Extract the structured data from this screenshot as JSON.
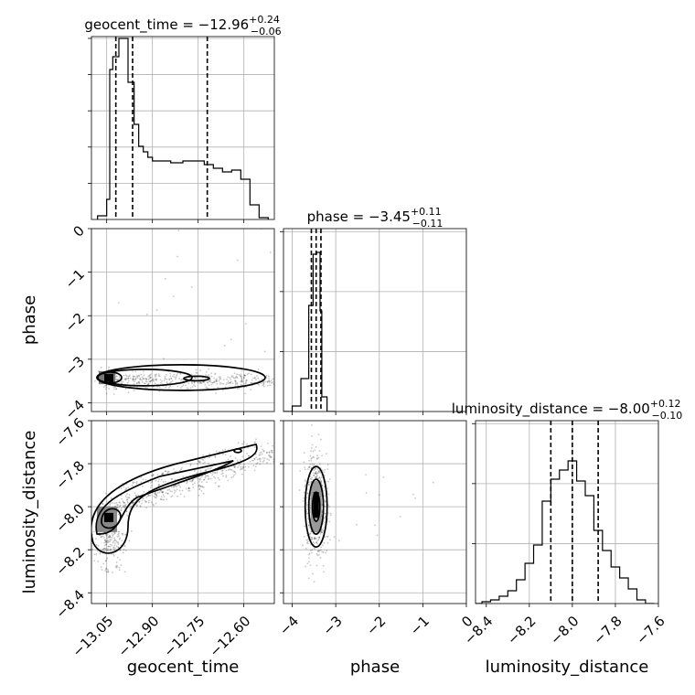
{
  "chart_data": {
    "type": "corner",
    "parameters": [
      "geocent_time",
      "phase",
      "luminosity_distance"
    ],
    "panel_titles": {
      "geocent_time": {
        "label": "geocent_time = −12.96",
        "plus": "+0.24",
        "minus": "−0.06"
      },
      "phase": {
        "label": "phase = −3.45",
        "plus": "+0.11",
        "minus": "−0.11"
      },
      "luminosity_distance": {
        "label": "luminosity_distance = −8.00",
        "plus": "+0.12",
        "minus": "−0.10"
      }
    },
    "ranges": {
      "geocent_time": [
        -13.1,
        -12.5
      ],
      "phase": [
        -4.2,
        0.0
      ],
      "luminosity_distance": [
        -8.45,
        -7.6
      ]
    },
    "ticks": {
      "geocent_time": {
        "values": [
          -13.05,
          -12.9,
          -12.75,
          -12.6
        ],
        "labels": [
          "−13.05",
          "−12.90",
          "−12.75",
          "−12.60"
        ]
      },
      "phase_x": {
        "values": [
          -4,
          -3,
          -2,
          -1,
          0
        ],
        "labels": [
          "−4",
          "−3",
          "−2",
          "−1",
          "0"
        ]
      },
      "phase_y": {
        "values": [
          0,
          -1,
          -2,
          -3,
          -4
        ],
        "labels": [
          "0",
          "−1",
          "−2",
          "−3",
          "−4"
        ]
      },
      "luminosity_distance": {
        "values": [
          -8.4,
          -8.2,
          -8.0,
          -7.8,
          -7.6
        ],
        "labels": [
          "−8.4",
          "−8.2",
          "−8.0",
          "−7.8",
          "−7.6"
        ]
      }
    },
    "quantiles": {
      "geocent_time": [
        -13.02,
        -12.965,
        -12.72
      ],
      "phase": [
        -3.56,
        -3.45,
        -3.34
      ],
      "luminosity_distance": [
        -8.1,
        -8.0,
        -7.88
      ]
    },
    "histograms": {
      "geocent_time": {
        "edges": [
          -13.08,
          -13.05,
          -13.04,
          -13.03,
          -13.01,
          -13.0,
          -12.98,
          -12.96,
          -12.945,
          -12.93,
          -12.915,
          -12.9,
          -12.87,
          -12.84,
          -12.8,
          -12.76,
          -12.73,
          -12.7,
          -12.67,
          -12.64,
          -12.61,
          -12.58,
          -12.55,
          -12.52
        ],
        "counts": [
          0.02,
          0.11,
          0.82,
          0.89,
          0.99,
          0.99,
          0.75,
          0.52,
          0.4,
          0.37,
          0.34,
          0.32,
          0.32,
          0.31,
          0.32,
          0.32,
          0.3,
          0.28,
          0.26,
          0.27,
          0.22,
          0.08,
          0.01
        ]
      },
      "phase": {
        "edges": [
          -4.2,
          -4.0,
          -3.8,
          -3.62,
          -3.52,
          -3.44,
          -3.36,
          -3.32,
          -3.2,
          -3.0
        ],
        "counts": [
          0.0,
          0.03,
          0.18,
          0.58,
          0.86,
          0.87,
          0.55,
          0.08,
          0.0
        ]
      },
      "luminosity_distance": {
        "edges": [
          -8.45,
          -8.42,
          -8.38,
          -8.34,
          -8.3,
          -8.26,
          -8.22,
          -8.18,
          -8.14,
          -8.1,
          -8.06,
          -8.02,
          -7.98,
          -7.94,
          -7.9,
          -7.86,
          -7.82,
          -7.78,
          -7.74,
          -7.7,
          -7.66,
          -7.62
        ],
        "counts": [
          0.0,
          0.01,
          0.02,
          0.04,
          0.07,
          0.13,
          0.22,
          0.32,
          0.56,
          0.68,
          0.73,
          0.78,
          0.67,
          0.59,
          0.4,
          0.29,
          0.2,
          0.14,
          0.08,
          0.02,
          0.0
        ]
      }
    },
    "density_peaks": {
      "phase_vs_geocent_time": {
        "x": -13.04,
        "y": -3.42
      },
      "luminosity_distance_vs_geocent_time": {
        "x": -13.04,
        "y": -8.05
      },
      "luminosity_distance_vs_phase": {
        "x": -3.45,
        "y": -8.0
      }
    },
    "grid": true,
    "contour_levels": 3
  }
}
